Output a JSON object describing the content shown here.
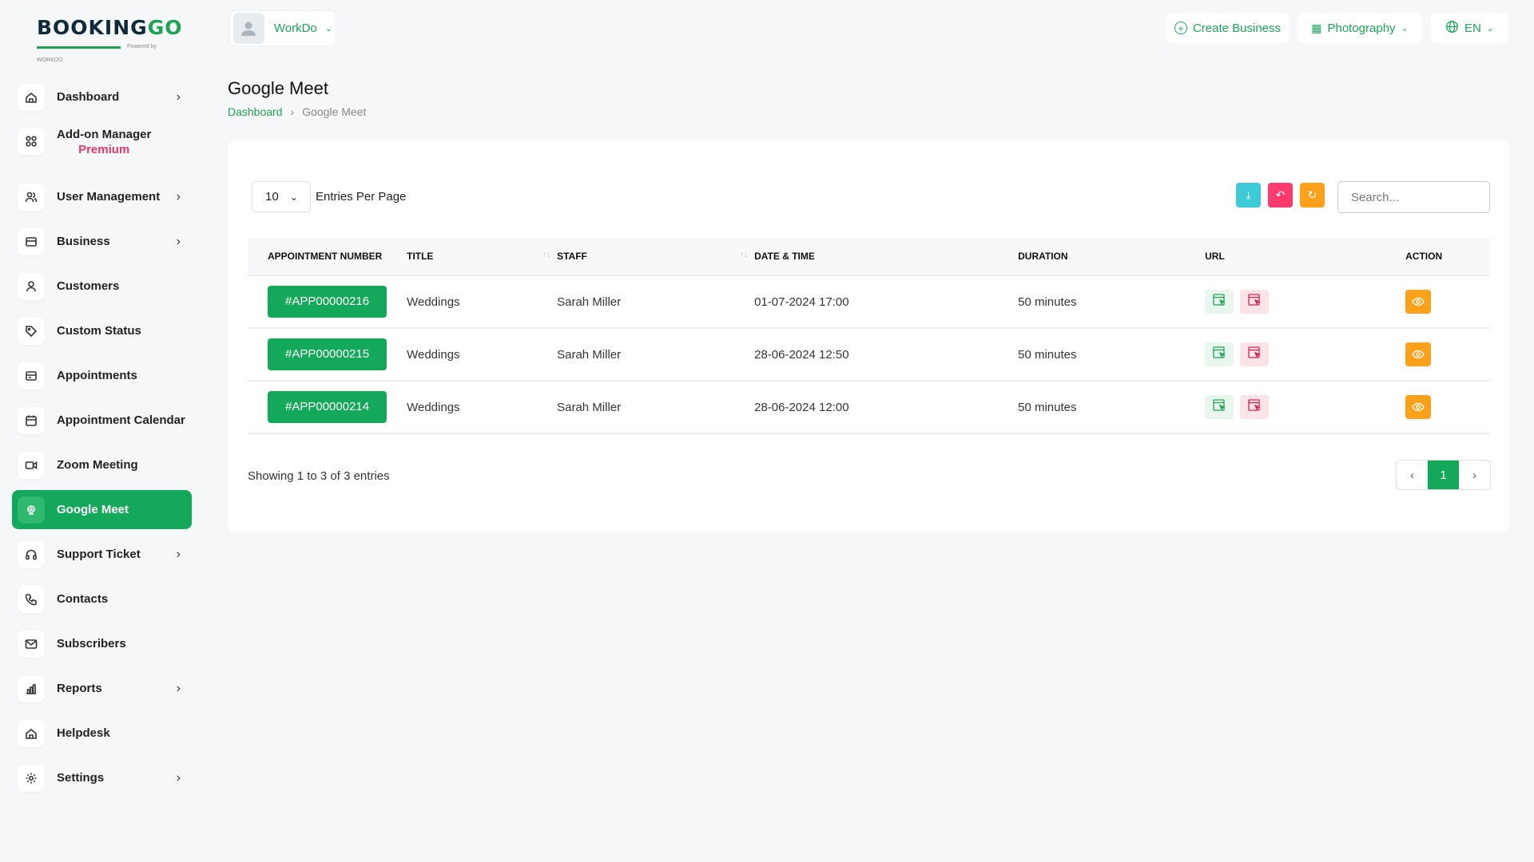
{
  "brand": {
    "logo_text": "BOOKINGGO",
    "powered": "Powered by WORKDO"
  },
  "header": {
    "user": "WorkDo",
    "create_business": "Create Business",
    "business": "Photography",
    "language": "EN"
  },
  "sidebar": {
    "items": [
      {
        "label": "Dashboard",
        "icon": "home-icon",
        "chevron": true
      },
      {
        "label": "Add-on Manager",
        "sub": "Premium",
        "icon": "grid-icon",
        "chevron": false
      },
      {
        "label": "User Management",
        "icon": "users-icon",
        "chevron": true
      },
      {
        "label": "Business",
        "icon": "briefcase-icon",
        "chevron": true
      },
      {
        "label": "Customers",
        "icon": "user-icon",
        "chevron": false
      },
      {
        "label": "Custom Status",
        "icon": "tag-icon",
        "chevron": false
      },
      {
        "label": "Appointments",
        "icon": "card-icon",
        "chevron": false
      },
      {
        "label": "Appointment Calendar",
        "icon": "calendar-icon",
        "chevron": false
      },
      {
        "label": "Zoom Meeting",
        "icon": "video-icon",
        "chevron": false
      },
      {
        "label": "Google Meet",
        "icon": "google-meet-icon",
        "chevron": false,
        "active": true
      },
      {
        "label": "Support Ticket",
        "icon": "headset-icon",
        "chevron": true
      },
      {
        "label": "Contacts",
        "icon": "phone-icon",
        "chevron": false
      },
      {
        "label": "Subscribers",
        "icon": "mail-icon",
        "chevron": false
      },
      {
        "label": "Reports",
        "icon": "chart-icon",
        "chevron": true
      },
      {
        "label": "Helpdesk",
        "icon": "home-icon",
        "chevron": false
      },
      {
        "label": "Settings",
        "icon": "gear-icon",
        "chevron": true
      }
    ]
  },
  "page": {
    "title": "Google Meet",
    "breadcrumb": [
      "Dashboard",
      "Google Meet"
    ]
  },
  "table_controls": {
    "per_page": "10",
    "per_page_label": "Entries Per Page",
    "search_placeholder": "Search...",
    "colors": {
      "export": "#3ec9d6",
      "reset": "#ff3a6e",
      "refresh": "#fda11a"
    }
  },
  "table": {
    "columns": [
      "APPOINTMENT NUMBER",
      "TITLE",
      "STAFF",
      "DATE & TIME",
      "DURATION",
      "URL",
      "ACTION"
    ],
    "rows": [
      {
        "number": "#APP00000216",
        "title": "Weddings",
        "staff": "Sarah Miller",
        "datetime": "01-07-2024 17:00",
        "duration": "50 minutes"
      },
      {
        "number": "#APP00000215",
        "title": "Weddings",
        "staff": "Sarah Miller",
        "datetime": "28-06-2024 12:50",
        "duration": "50 minutes"
      },
      {
        "number": "#APP00000214",
        "title": "Weddings",
        "staff": "Sarah Miller",
        "datetime": "28-06-2024 12:00",
        "duration": "50 minutes"
      }
    ]
  },
  "footer": {
    "showing": "Showing 1 to 3 of 3 entries",
    "current_page": "1"
  }
}
